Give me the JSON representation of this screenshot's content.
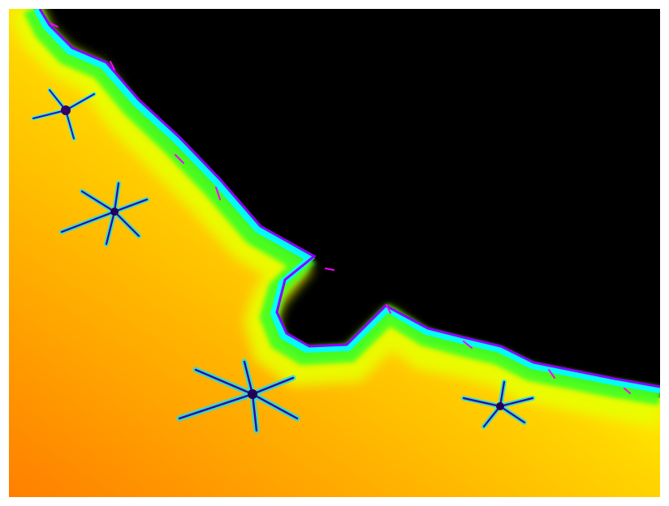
{
  "image": {
    "subject": "fractal-boundary",
    "colors": {
      "interior": "#000000",
      "outer_far": "#ff7f00",
      "outer_mid": "#ffd400",
      "yellow": "#ffff00",
      "lime": "#b8ff00",
      "green": "#33ff33",
      "cyan": "#00ffff",
      "blue": "#2233ff",
      "magenta": "#ff00ff",
      "filament": "#4400aa",
      "background": "#ffffff"
    }
  }
}
